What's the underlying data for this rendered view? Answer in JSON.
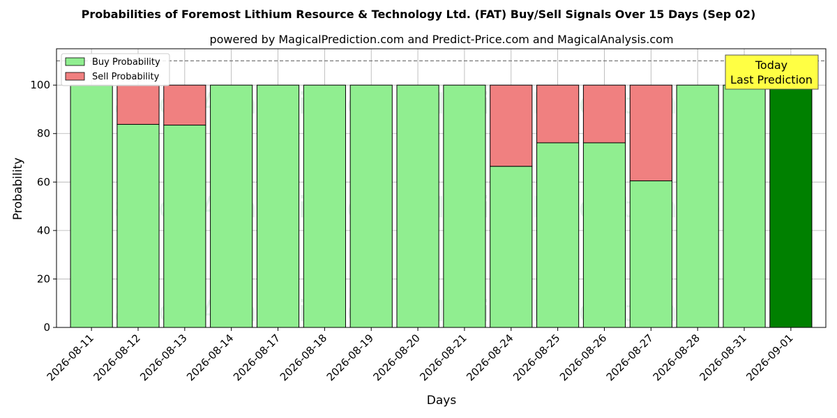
{
  "chart_data": {
    "type": "bar",
    "stacked": true,
    "title": "Probabilities of Foremost Lithium Resource & Technology Ltd. (FAT) Buy/Sell Signals Over 15 Days (Sep 02)",
    "subtitle": "powered by MagicalPrediction.com and Predict-Price.com and MagicalAnalysis.com",
    "xlabel": "Days",
    "ylabel": "Probability",
    "ylim": [
      0,
      115
    ],
    "yticks": [
      0,
      20,
      40,
      60,
      80,
      100
    ],
    "reference_line": 110,
    "grid": true,
    "legend_position": "top-left",
    "categories": [
      "2026-08-11",
      "2026-08-12",
      "2026-08-13",
      "2026-08-14",
      "2026-08-17",
      "2026-08-18",
      "2026-08-19",
      "2026-08-20",
      "2026-08-21",
      "2026-08-24",
      "2026-08-25",
      "2026-08-26",
      "2026-08-27",
      "2026-08-28",
      "2026-08-31",
      "2026-09-01"
    ],
    "series": [
      {
        "name": "Buy Probability",
        "color": "#90ee90",
        "values": [
          100,
          83.8,
          83.5,
          100,
          100,
          100,
          100,
          100,
          100,
          66.5,
          76.2,
          76.2,
          60.5,
          100,
          100,
          100
        ]
      },
      {
        "name": "Sell Probability",
        "color": "#f08080",
        "values": [
          0,
          16.2,
          16.5,
          0,
          0,
          0,
          0,
          0,
          0,
          33.5,
          23.8,
          23.8,
          39.5,
          0,
          0,
          0
        ]
      }
    ],
    "highlight": {
      "index": 15,
      "color": "#008000"
    },
    "annotation": {
      "line1": "Today",
      "line2": "Last Prediction",
      "background": "#ffff44"
    },
    "watermarks": [
      "MagicalAnalysis.com",
      "MagicalPrediction.com"
    ]
  }
}
